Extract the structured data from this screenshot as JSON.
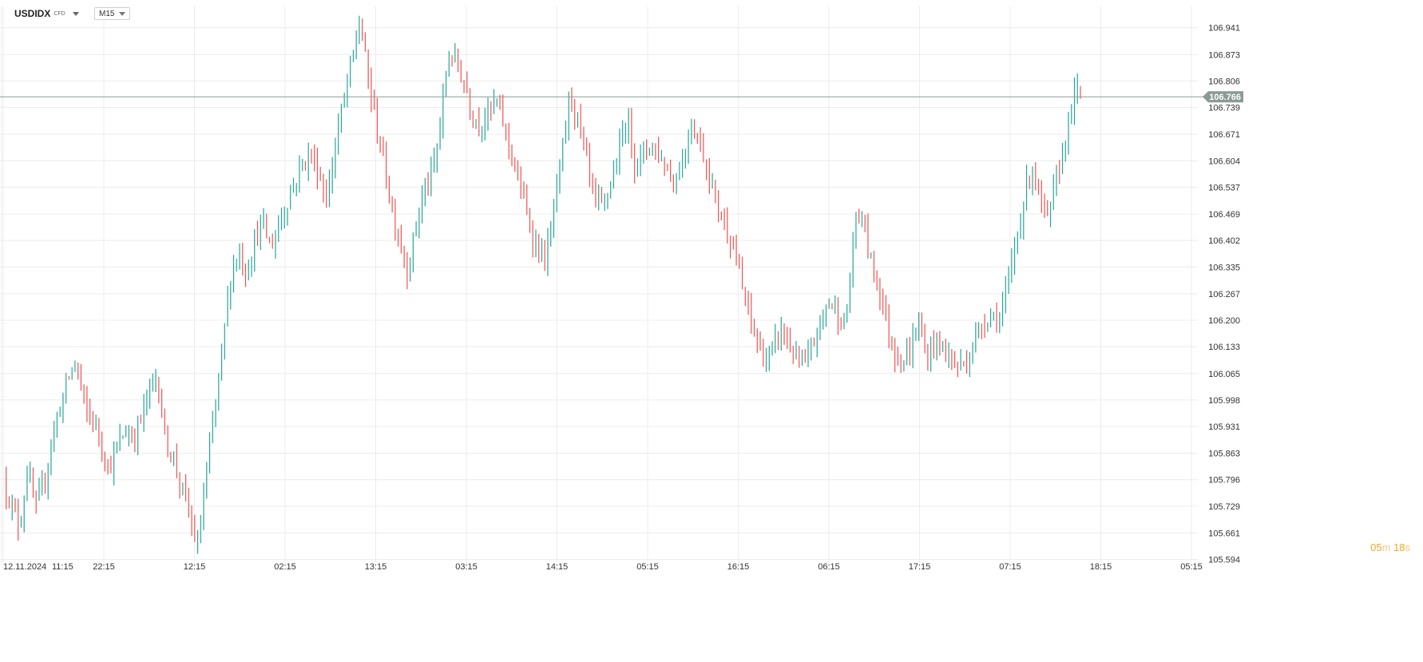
{
  "header": {
    "symbol": "USDIDX",
    "symbol_type": "CFD",
    "timeframe": "M15"
  },
  "timer": {
    "minutes": "05",
    "minutes_unit": "m",
    "seconds": "18",
    "seconds_unit": "s"
  },
  "colors": {
    "up": "#26a69a",
    "down": "#ef5350",
    "grid": "#ececec",
    "price_line": "#8a9a95",
    "price_tag": "#8a9a95",
    "timer": "#f5a623"
  },
  "chart_data": {
    "type": "candlestick",
    "title": "",
    "xlabel": "",
    "ylabel": "",
    "ylim": [
      105.575,
      106.995
    ],
    "y_ticks": [
      "106.941",
      "106.873",
      "106.806",
      "106.739",
      "106.671",
      "106.604",
      "106.537",
      "106.469",
      "106.402",
      "106.335",
      "106.267",
      "106.200",
      "106.133",
      "106.065",
      "105.998",
      "105.931",
      "105.863",
      "105.796",
      "105.729",
      "105.661",
      "105.594"
    ],
    "x_tick_labels": [
      "12.11.2024",
      "11:15",
      "22:15",
      "12:15",
      "02:15",
      "13:15",
      "03:15",
      "14:15",
      "05:15",
      "16:15",
      "06:15",
      "17:15",
      "07:15",
      "18:15",
      "05:15"
    ],
    "grid": true,
    "current_price": 106.766,
    "price_path": [
      105.8,
      105.73,
      105.68,
      105.82,
      105.72,
      105.78,
      105.9,
      105.98,
      106.05,
      106.1,
      105.98,
      105.95,
      105.9,
      105.82,
      105.87,
      105.92,
      105.9,
      105.95,
      106.02,
      106.06,
      105.9,
      105.85,
      105.78,
      105.7,
      105.62,
      105.8,
      105.95,
      106.12,
      106.3,
      106.38,
      106.32,
      106.4,
      106.45,
      106.38,
      106.44,
      106.5,
      106.55,
      106.6,
      106.62,
      106.57,
      106.5,
      106.65,
      106.75,
      106.85,
      106.96,
      106.82,
      106.7,
      106.6,
      106.48,
      106.4,
      106.32,
      106.45,
      106.53,
      106.57,
      106.7,
      106.88,
      106.85,
      106.8,
      106.72,
      106.7,
      106.73,
      106.75,
      106.68,
      106.6,
      106.52,
      106.44,
      106.38,
      106.35,
      106.48,
      106.62,
      106.78,
      106.7,
      106.6,
      106.5,
      106.48,
      106.55,
      106.62,
      106.72,
      106.6,
      106.62,
      106.65,
      106.62,
      106.58,
      106.55,
      106.62,
      106.7,
      106.65,
      106.58,
      106.5,
      106.45,
      106.4,
      106.3,
      106.22,
      106.15,
      106.1,
      106.12,
      106.18,
      106.14,
      106.1,
      106.08,
      106.14,
      106.2,
      106.25,
      106.22,
      106.18,
      106.42,
      106.48,
      106.35,
      106.3,
      106.2,
      106.12,
      106.1,
      106.12,
      106.2,
      106.1,
      106.15,
      106.13,
      106.1,
      106.08,
      106.1,
      106.15,
      106.2,
      106.22,
      106.2,
      106.28,
      106.4,
      106.5,
      106.6,
      106.5,
      106.45,
      106.55,
      106.65,
      106.75,
      106.79
    ]
  }
}
